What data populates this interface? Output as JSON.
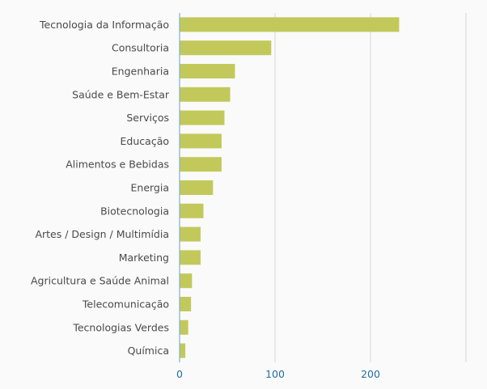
{
  "chart_data": {
    "type": "bar",
    "orientation": "horizontal",
    "title": "",
    "xlabel": "",
    "ylabel": "",
    "categories": [
      "Tecnologia da Informação",
      "Consultoria",
      "Engenharia",
      "Saúde e Bem-Estar",
      "Serviços",
      "Educação",
      "Alimentos e Bebidas",
      "Energia",
      "Biotecnologia",
      "Artes / Design / Multimídia",
      "Marketing",
      "Agricultura e Saúde Animal",
      "Telecomunicação",
      "Tecnologias Verdes",
      "Química"
    ],
    "values": [
      230,
      96,
      58,
      53,
      47,
      44,
      44,
      35,
      25,
      22,
      22,
      13,
      12,
      9,
      6
    ],
    "xlim": [
      0,
      300
    ],
    "xticks": [
      0,
      100,
      200
    ],
    "xtick_labels": [
      "0",
      "100",
      "200"
    ],
    "gridlines": [
      100,
      200,
      300
    ],
    "grid": true,
    "legend": "none",
    "bar_color": "#c2c95a"
  }
}
